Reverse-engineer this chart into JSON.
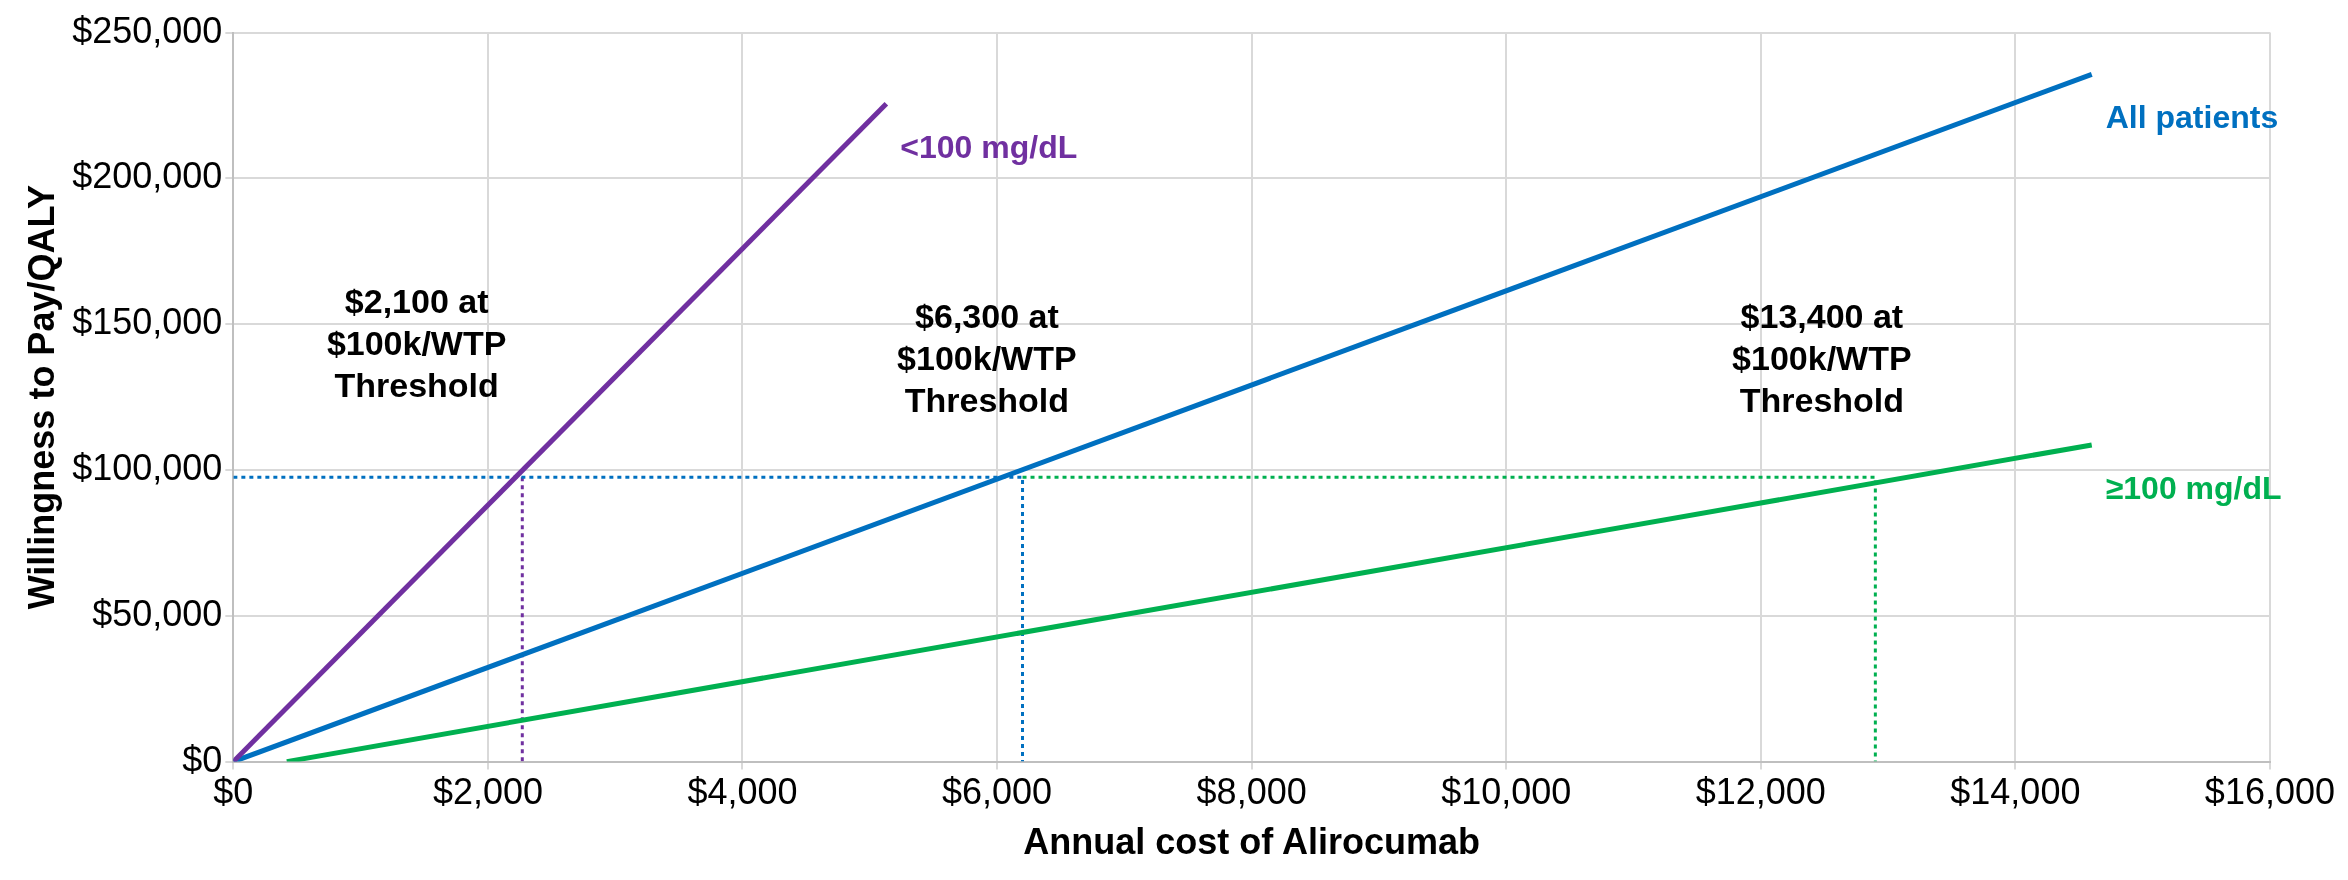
{
  "chart_data": {
    "type": "line",
    "xlabel": "Annual cost of Alirocumab",
    "ylabel": "Willingness to Pay/QALY",
    "xlim": [
      0,
      16000
    ],
    "xticks": [
      {
        "value": 0,
        "label": "$0"
      },
      {
        "value": 2000,
        "label": "$2,000"
      },
      {
        "value": 4000,
        "label": "$4,000"
      },
      {
        "value": 6000,
        "label": "$6,000"
      },
      {
        "value": 8000,
        "label": "$8,000"
      },
      {
        "value": 10000,
        "label": "$10,000"
      },
      {
        "value": 12000,
        "label": "$12,000"
      },
      {
        "value": 14000,
        "label": "$14,000"
      },
      {
        "value": 16000,
        "label": "$16,000"
      }
    ],
    "ylim": [
      0,
      250000
    ],
    "yticks": [
      {
        "value": 0,
        "label": "$0"
      },
      {
        "value": 50000,
        "label": "$50,000"
      },
      {
        "value": 100000,
        "label": "$100,000"
      },
      {
        "value": 150000,
        "label": "$150,000"
      },
      {
        "value": 200000,
        "label": "$200,000"
      },
      {
        "value": 250000,
        "label": "$250,000"
      }
    ],
    "grid": true,
    "legend": false,
    "marker": "none",
    "series": [
      {
        "name": "<100 mg/dL",
        "color": "#7030a0",
        "x": [
          0,
          5130
        ],
        "values": [
          0,
          225600
        ],
        "line_style": "solid"
      },
      {
        "name": "All patients",
        "color": "#0070c0",
        "x": [
          0,
          14600
        ],
        "values": [
          0,
          235700
        ],
        "line_style": "solid"
      },
      {
        "name": "≥100 mg/dL",
        "color": "#00b050",
        "x": [
          420,
          14600
        ],
        "values": [
          0,
          108600
        ],
        "line_style": "solid"
      },
      {
        "color": "#0070c0",
        "x": [
          0,
          6200,
          6200
        ],
        "values": [
          97500,
          97500,
          0
        ],
        "line_style": "dotted"
      },
      {
        "color": "#7030a0",
        "x": [
          2270,
          2270
        ],
        "values": [
          97500,
          0
        ],
        "line_style": "dotted"
      },
      {
        "color": "#00b050",
        "x": [
          6200,
          12900,
          12900
        ],
        "values": [
          97500,
          97500,
          0
        ],
        "line_style": "dotted"
      }
    ],
    "annotations": [
      "$2,100 at\n$100k/WTP\nThreshold",
      "$6,300 at\n$100k/WTP\nThreshold",
      "$13,400 at\n$100k/WTP\nThreshold"
    ]
  }
}
